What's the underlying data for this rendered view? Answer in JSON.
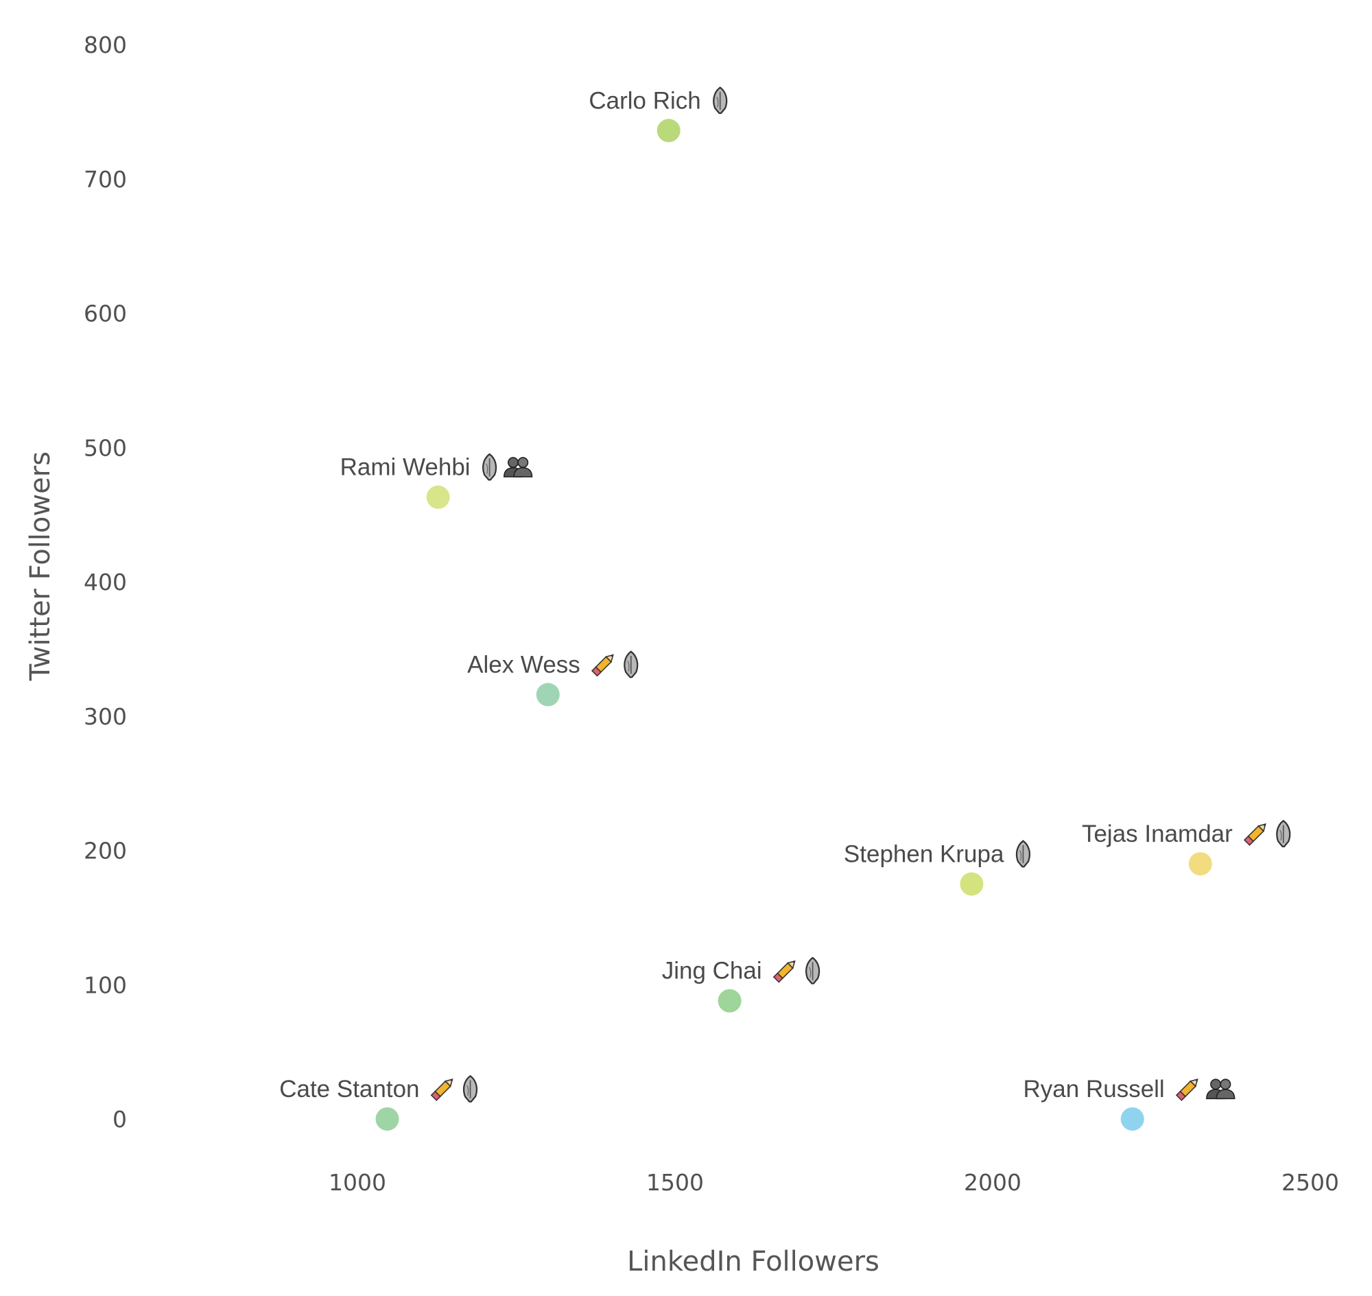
{
  "chart_data": {
    "type": "scatter",
    "xlabel": "LinkedIn Followers",
    "ylabel": "Twitter Followers",
    "xlim": [
      640,
      2550
    ],
    "ylim": [
      -30,
      815
    ],
    "x_ticks": [
      1000,
      1500,
      2000,
      2500
    ],
    "y_ticks": [
      0,
      100,
      200,
      300,
      400,
      500,
      600,
      700,
      800
    ],
    "grid": false,
    "points": [
      {
        "name": "Carlo Rich",
        "x": 1490,
        "y": 736,
        "color": "#b9d97a",
        "icons": [
          "pen-nib-icon"
        ]
      },
      {
        "name": "Rami Wehbi",
        "x": 1127,
        "y": 463,
        "color": "#d9e58a",
        "icons": [
          "pen-nib-icon",
          "group-icon"
        ]
      },
      {
        "name": "Alex Wess",
        "x": 1300,
        "y": 316,
        "color": "#9fd5b4",
        "icons": [
          "pencil-icon",
          "pen-nib-icon"
        ]
      },
      {
        "name": "Stephen Krupa",
        "x": 1967,
        "y": 175,
        "color": "#d5e37f",
        "icons": [
          "pen-nib-icon"
        ]
      },
      {
        "name": "Tejas Inamdar",
        "x": 2327,
        "y": 190,
        "color": "#f3dc80",
        "icons": [
          "pencil-icon",
          "pen-nib-icon"
        ]
      },
      {
        "name": "Jing Chai",
        "x": 1586,
        "y": 88,
        "color": "#9fd49a",
        "icons": [
          "pencil-icon",
          "pen-nib-icon"
        ]
      },
      {
        "name": "Cate Stanton",
        "x": 1047,
        "y": 0,
        "color": "#9fd4a4",
        "icons": [
          "pencil-icon",
          "pen-nib-icon"
        ]
      },
      {
        "name": "Ryan Russell",
        "x": 2220,
        "y": 0,
        "color": "#8fd3ef",
        "icons": [
          "pencil-icon",
          "group-icon"
        ]
      }
    ]
  }
}
